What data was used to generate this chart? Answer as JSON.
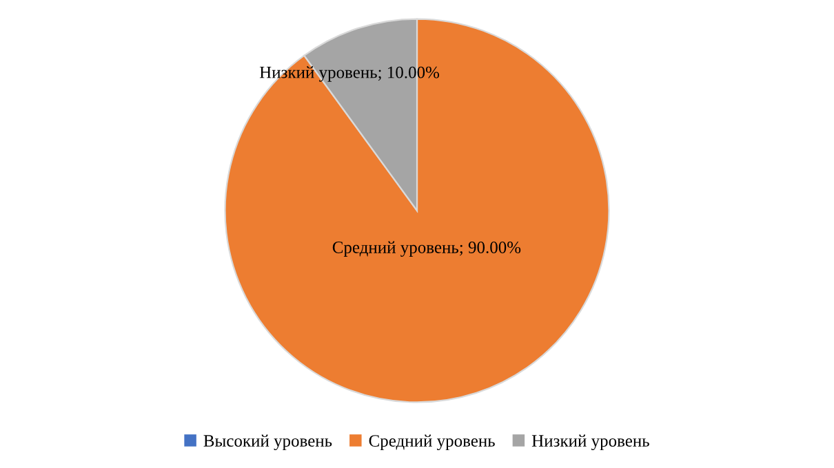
{
  "chart_data": {
    "type": "pie",
    "categories": [
      "Высокий уровень",
      "Средний уровень",
      "Низкий уровень"
    ],
    "values": [
      0,
      90,
      10
    ],
    "colors": [
      "#4472c4",
      "#ed7d31",
      "#a5a5a5"
    ],
    "value_labels": [
      null,
      "Средний уровень; 90.00%",
      "Низкий уровень; 10.00%"
    ],
    "legend": "bottom"
  }
}
